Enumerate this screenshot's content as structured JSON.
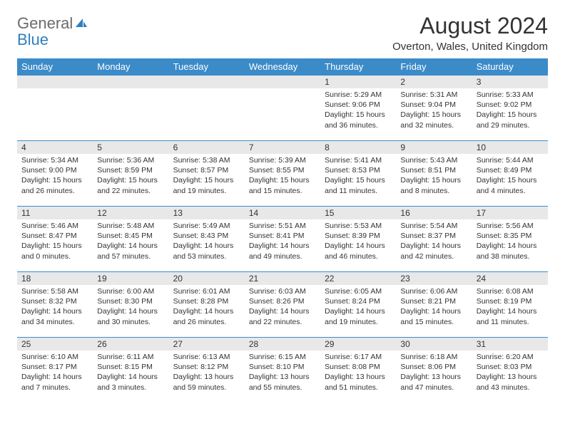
{
  "logo": {
    "text_gray": "General",
    "text_blue": "Blue",
    "gray_color": "#6b6b6b",
    "blue_color": "#2f7fbf"
  },
  "title": "August 2024",
  "subtitle": "Overton, Wales, United Kingdom",
  "header_bg": "#3b8bc9",
  "header_text_color": "#ffffff",
  "band_bg": "#e8e8e8",
  "border_color": "#3b8bc9",
  "day_headers": [
    "Sunday",
    "Monday",
    "Tuesday",
    "Wednesday",
    "Thursday",
    "Friday",
    "Saturday"
  ],
  "weeks": [
    [
      {
        "empty": true
      },
      {
        "empty": true
      },
      {
        "empty": true
      },
      {
        "empty": true
      },
      {
        "day": "1",
        "sunrise": "Sunrise: 5:29 AM",
        "sunset": "Sunset: 9:06 PM",
        "daylight": "Daylight: 15 hours and 36 minutes."
      },
      {
        "day": "2",
        "sunrise": "Sunrise: 5:31 AM",
        "sunset": "Sunset: 9:04 PM",
        "daylight": "Daylight: 15 hours and 32 minutes."
      },
      {
        "day": "3",
        "sunrise": "Sunrise: 5:33 AM",
        "sunset": "Sunset: 9:02 PM",
        "daylight": "Daylight: 15 hours and 29 minutes."
      }
    ],
    [
      {
        "day": "4",
        "sunrise": "Sunrise: 5:34 AM",
        "sunset": "Sunset: 9:00 PM",
        "daylight": "Daylight: 15 hours and 26 minutes."
      },
      {
        "day": "5",
        "sunrise": "Sunrise: 5:36 AM",
        "sunset": "Sunset: 8:59 PM",
        "daylight": "Daylight: 15 hours and 22 minutes."
      },
      {
        "day": "6",
        "sunrise": "Sunrise: 5:38 AM",
        "sunset": "Sunset: 8:57 PM",
        "daylight": "Daylight: 15 hours and 19 minutes."
      },
      {
        "day": "7",
        "sunrise": "Sunrise: 5:39 AM",
        "sunset": "Sunset: 8:55 PM",
        "daylight": "Daylight: 15 hours and 15 minutes."
      },
      {
        "day": "8",
        "sunrise": "Sunrise: 5:41 AM",
        "sunset": "Sunset: 8:53 PM",
        "daylight": "Daylight: 15 hours and 11 minutes."
      },
      {
        "day": "9",
        "sunrise": "Sunrise: 5:43 AM",
        "sunset": "Sunset: 8:51 PM",
        "daylight": "Daylight: 15 hours and 8 minutes."
      },
      {
        "day": "10",
        "sunrise": "Sunrise: 5:44 AM",
        "sunset": "Sunset: 8:49 PM",
        "daylight": "Daylight: 15 hours and 4 minutes."
      }
    ],
    [
      {
        "day": "11",
        "sunrise": "Sunrise: 5:46 AM",
        "sunset": "Sunset: 8:47 PM",
        "daylight": "Daylight: 15 hours and 0 minutes."
      },
      {
        "day": "12",
        "sunrise": "Sunrise: 5:48 AM",
        "sunset": "Sunset: 8:45 PM",
        "daylight": "Daylight: 14 hours and 57 minutes."
      },
      {
        "day": "13",
        "sunrise": "Sunrise: 5:49 AM",
        "sunset": "Sunset: 8:43 PM",
        "daylight": "Daylight: 14 hours and 53 minutes."
      },
      {
        "day": "14",
        "sunrise": "Sunrise: 5:51 AM",
        "sunset": "Sunset: 8:41 PM",
        "daylight": "Daylight: 14 hours and 49 minutes."
      },
      {
        "day": "15",
        "sunrise": "Sunrise: 5:53 AM",
        "sunset": "Sunset: 8:39 PM",
        "daylight": "Daylight: 14 hours and 46 minutes."
      },
      {
        "day": "16",
        "sunrise": "Sunrise: 5:54 AM",
        "sunset": "Sunset: 8:37 PM",
        "daylight": "Daylight: 14 hours and 42 minutes."
      },
      {
        "day": "17",
        "sunrise": "Sunrise: 5:56 AM",
        "sunset": "Sunset: 8:35 PM",
        "daylight": "Daylight: 14 hours and 38 minutes."
      }
    ],
    [
      {
        "day": "18",
        "sunrise": "Sunrise: 5:58 AM",
        "sunset": "Sunset: 8:32 PM",
        "daylight": "Daylight: 14 hours and 34 minutes."
      },
      {
        "day": "19",
        "sunrise": "Sunrise: 6:00 AM",
        "sunset": "Sunset: 8:30 PM",
        "daylight": "Daylight: 14 hours and 30 minutes."
      },
      {
        "day": "20",
        "sunrise": "Sunrise: 6:01 AM",
        "sunset": "Sunset: 8:28 PM",
        "daylight": "Daylight: 14 hours and 26 minutes."
      },
      {
        "day": "21",
        "sunrise": "Sunrise: 6:03 AM",
        "sunset": "Sunset: 8:26 PM",
        "daylight": "Daylight: 14 hours and 22 minutes."
      },
      {
        "day": "22",
        "sunrise": "Sunrise: 6:05 AM",
        "sunset": "Sunset: 8:24 PM",
        "daylight": "Daylight: 14 hours and 19 minutes."
      },
      {
        "day": "23",
        "sunrise": "Sunrise: 6:06 AM",
        "sunset": "Sunset: 8:21 PM",
        "daylight": "Daylight: 14 hours and 15 minutes."
      },
      {
        "day": "24",
        "sunrise": "Sunrise: 6:08 AM",
        "sunset": "Sunset: 8:19 PM",
        "daylight": "Daylight: 14 hours and 11 minutes."
      }
    ],
    [
      {
        "day": "25",
        "sunrise": "Sunrise: 6:10 AM",
        "sunset": "Sunset: 8:17 PM",
        "daylight": "Daylight: 14 hours and 7 minutes."
      },
      {
        "day": "26",
        "sunrise": "Sunrise: 6:11 AM",
        "sunset": "Sunset: 8:15 PM",
        "daylight": "Daylight: 14 hours and 3 minutes."
      },
      {
        "day": "27",
        "sunrise": "Sunrise: 6:13 AM",
        "sunset": "Sunset: 8:12 PM",
        "daylight": "Daylight: 13 hours and 59 minutes."
      },
      {
        "day": "28",
        "sunrise": "Sunrise: 6:15 AM",
        "sunset": "Sunset: 8:10 PM",
        "daylight": "Daylight: 13 hours and 55 minutes."
      },
      {
        "day": "29",
        "sunrise": "Sunrise: 6:17 AM",
        "sunset": "Sunset: 8:08 PM",
        "daylight": "Daylight: 13 hours and 51 minutes."
      },
      {
        "day": "30",
        "sunrise": "Sunrise: 6:18 AM",
        "sunset": "Sunset: 8:06 PM",
        "daylight": "Daylight: 13 hours and 47 minutes."
      },
      {
        "day": "31",
        "sunrise": "Sunrise: 6:20 AM",
        "sunset": "Sunset: 8:03 PM",
        "daylight": "Daylight: 13 hours and 43 minutes."
      }
    ]
  ]
}
